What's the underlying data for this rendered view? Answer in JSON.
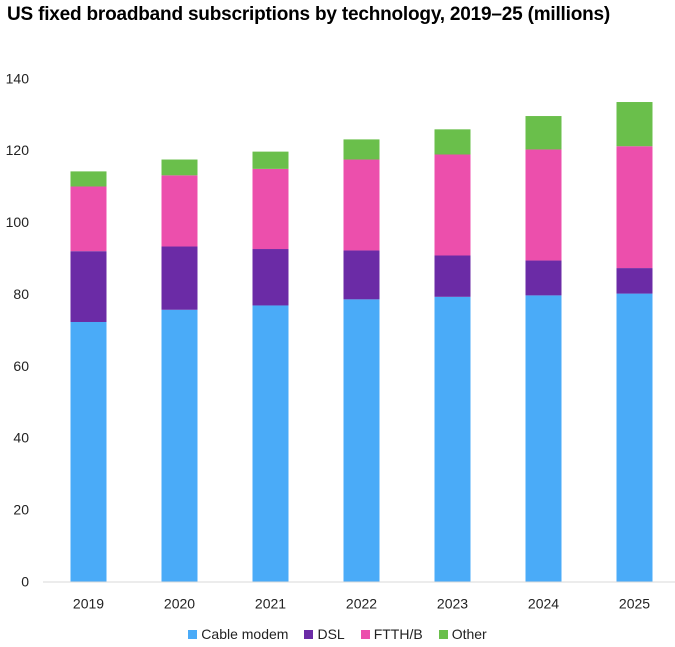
{
  "chart_data": {
    "type": "bar",
    "stacked": true,
    "title": "US fixed broadband subscriptions by technology, 2019–25 (millions)",
    "xlabel": "",
    "ylabel": "",
    "categories": [
      "2019",
      "2020",
      "2021",
      "2022",
      "2023",
      "2024",
      "2025"
    ],
    "series": [
      {
        "name": "Cable modem",
        "color": "#4aabf8",
        "values": [
          72.2,
          75.6,
          76.8,
          78.5,
          79.2,
          79.6,
          80.1
        ]
      },
      {
        "name": "DSL",
        "color": "#6b2ba6",
        "values": [
          19.7,
          17.6,
          15.7,
          13.6,
          11.5,
          9.7,
          7.1
        ]
      },
      {
        "name": "FTTH/B",
        "color": "#ec4fac",
        "values": [
          18.0,
          19.8,
          22.3,
          25.3,
          28.1,
          30.9,
          33.9
        ]
      },
      {
        "name": "Other",
        "color": "#6abf4b",
        "values": [
          4.2,
          4.4,
          4.8,
          5.6,
          7.0,
          9.3,
          12.3
        ]
      }
    ],
    "ylim": [
      0,
      140
    ],
    "yticks": [
      "0",
      "20",
      "40",
      "60",
      "80",
      "100",
      "120",
      "140"
    ],
    "grid": false,
    "legend_position": "bottom"
  }
}
